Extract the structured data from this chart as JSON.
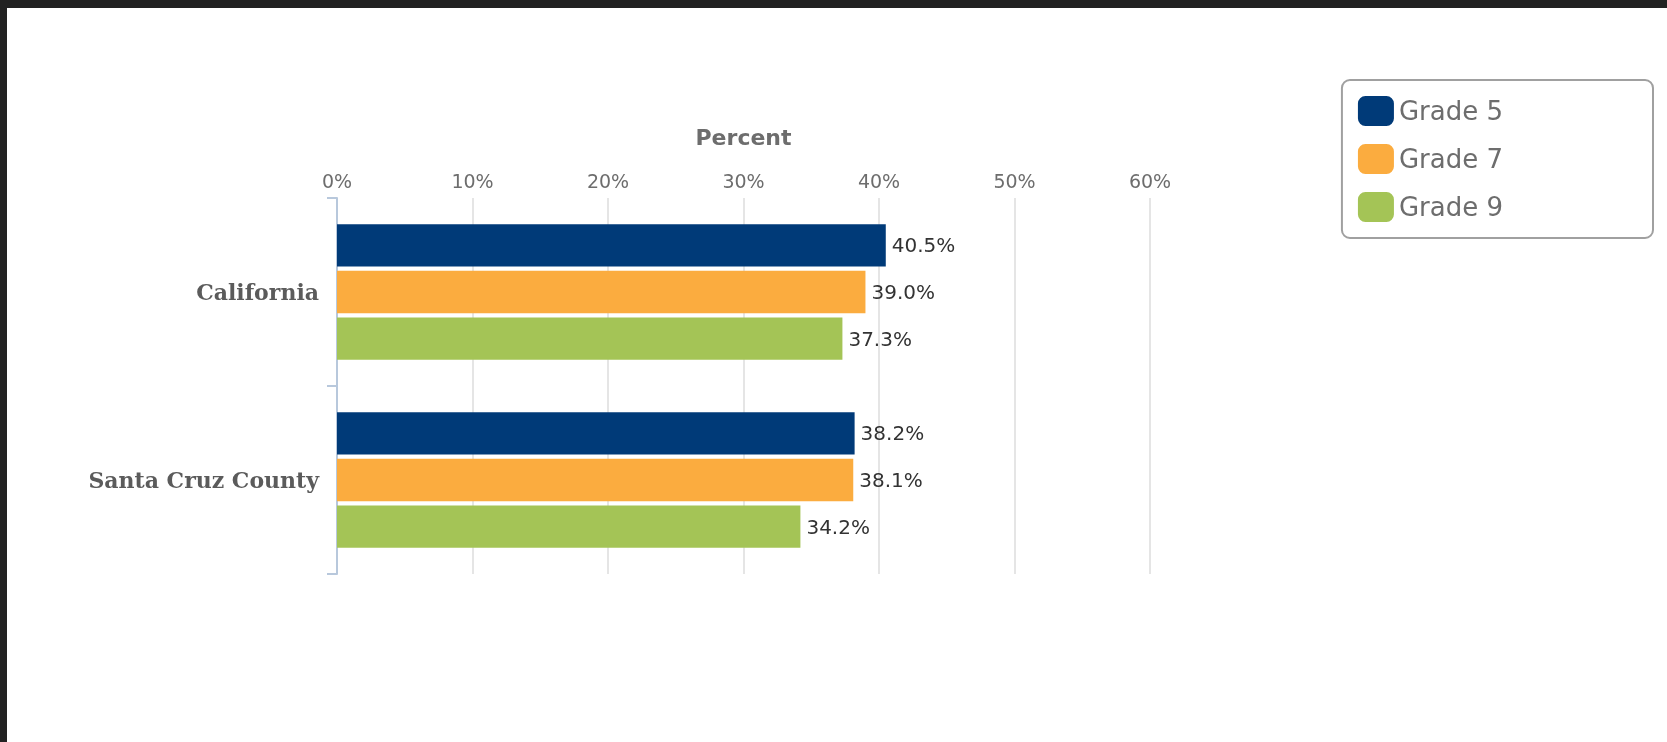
{
  "chart_data": {
    "type": "bar",
    "orientation": "horizontal",
    "xlabel": "Percent",
    "categories": [
      "California",
      "Santa Cruz County"
    ],
    "series": [
      {
        "name": "Grade 5",
        "color": "#003a78",
        "values": [
          40.5,
          38.2
        ],
        "value_labels": [
          "40.5%",
          "38.2%"
        ]
      },
      {
        "name": "Grade 7",
        "color": "#fbac3f",
        "values": [
          39.0,
          38.1
        ],
        "value_labels": [
          "39.0%",
          "38.1%"
        ]
      },
      {
        "name": "Grade 9",
        "color": "#a4c456",
        "values": [
          37.3,
          34.2
        ],
        "value_labels": [
          "37.3%",
          "34.2%"
        ]
      }
    ],
    "xlim": [
      0,
      60
    ],
    "xticks": [
      {
        "value": 0,
        "label": "0%"
      },
      {
        "value": 10,
        "label": "10%"
      },
      {
        "value": 20,
        "label": "20%"
      },
      {
        "value": 30,
        "label": "30%"
      },
      {
        "value": 40,
        "label": "40%"
      },
      {
        "value": 50,
        "label": "50%"
      },
      {
        "value": 60,
        "label": "60%"
      }
    ],
    "grid": "x",
    "legend": "top right"
  }
}
